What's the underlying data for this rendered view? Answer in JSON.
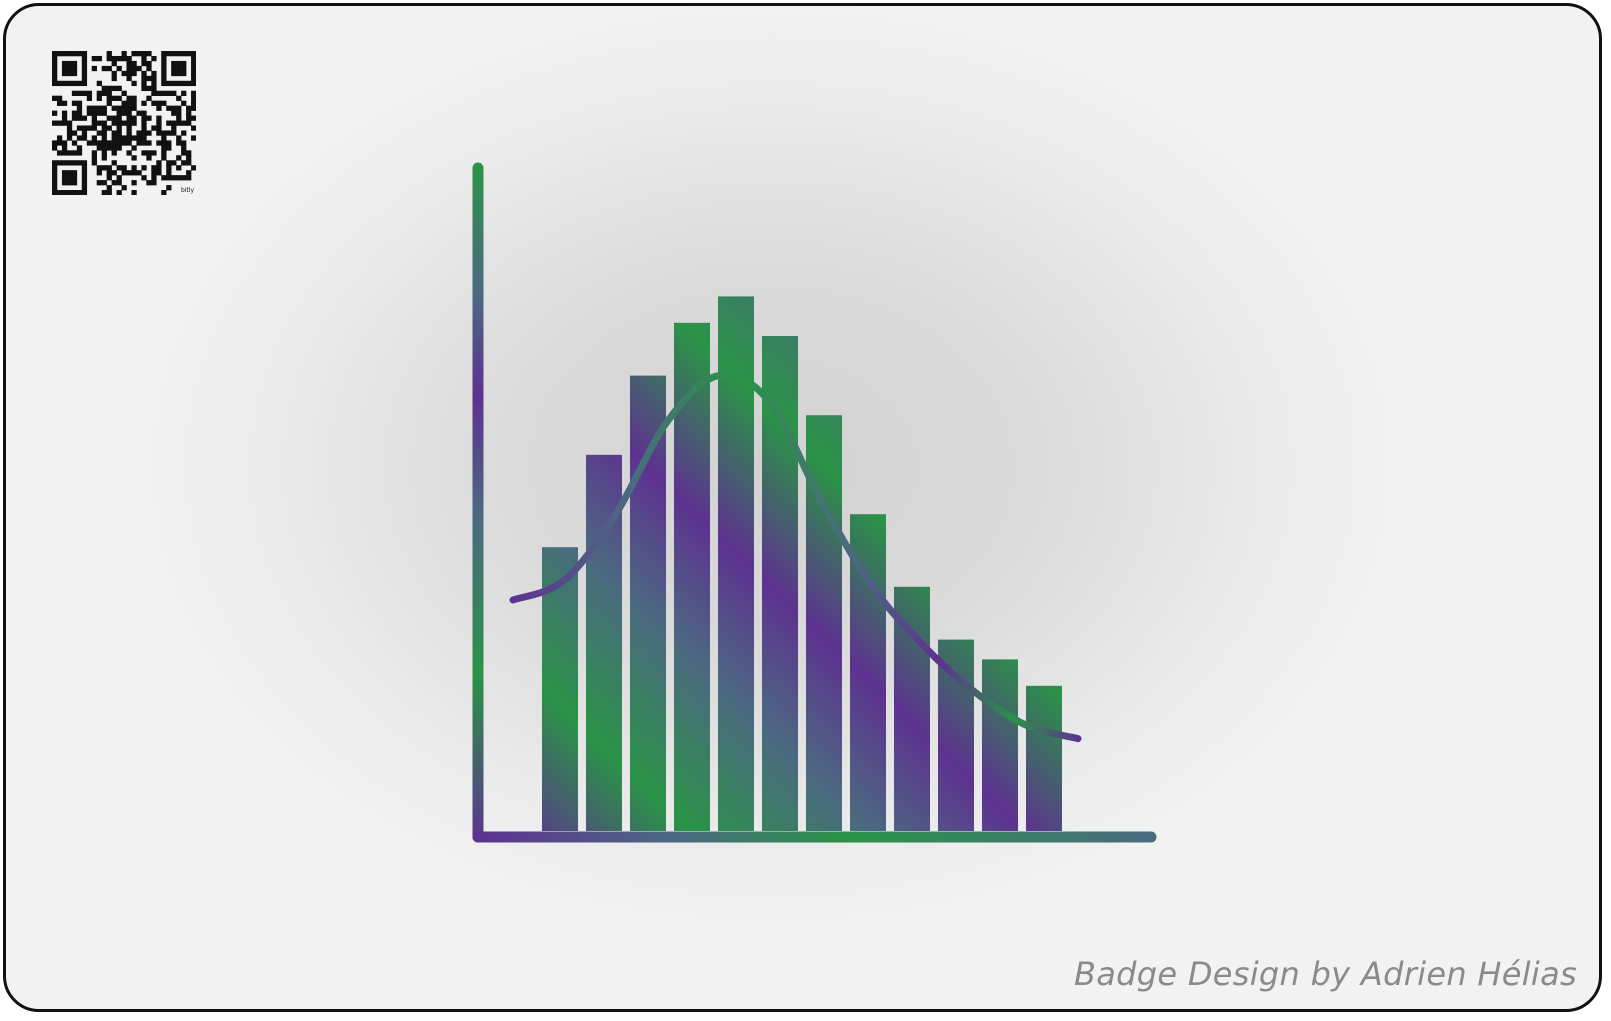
{
  "badge": {
    "credit": "Badge Design by Adrien Hélias",
    "qr_caption": "bitly"
  },
  "colors": {
    "green": "#2a9347",
    "purple": "#5d3290",
    "slate": "#4b6a80",
    "frame": "#111111",
    "credit_text": "#8a8a8a"
  },
  "icons": [
    "qr-code-icon",
    "histogram-chart-icon"
  ],
  "illustration": {
    "bar_levels": [
      0.43,
      0.57,
      0.69,
      0.77,
      0.81,
      0.75,
      0.63,
      0.48,
      0.37,
      0.29,
      0.26,
      0.22
    ],
    "curve_levels": [
      0.35,
      0.38,
      0.48,
      0.62,
      0.69,
      0.65,
      0.5,
      0.37,
      0.28,
      0.21,
      0.16,
      0.14
    ]
  }
}
